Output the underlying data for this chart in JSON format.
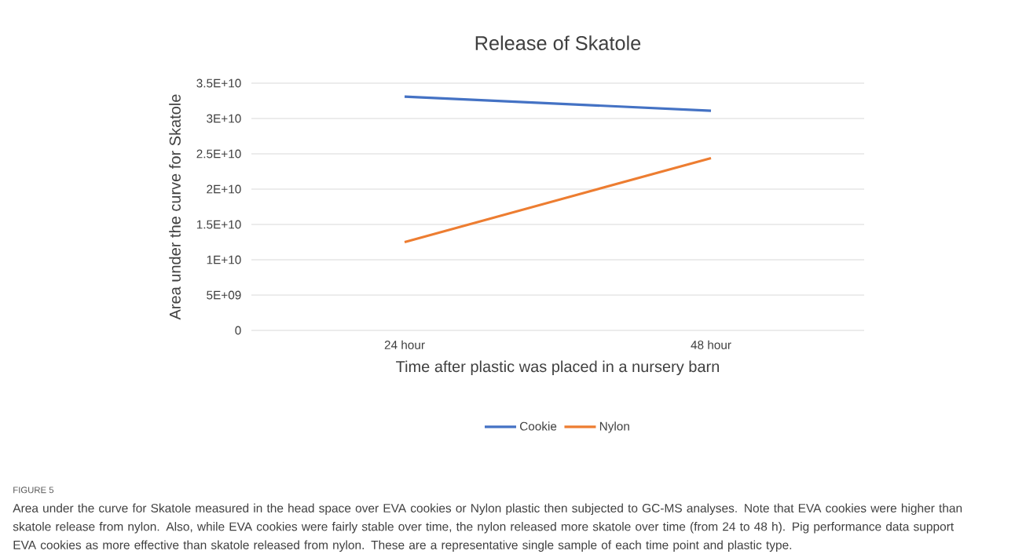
{
  "chart_data": {
    "type": "line",
    "title": "Release of Skatole",
    "xlabel": "Time after plastic was placed in a nursery barn",
    "ylabel": "Area under the curve for Skatole",
    "categories": [
      "24 hour",
      "48 hour"
    ],
    "series": [
      {
        "name": "Cookie",
        "color": "#4472c4",
        "values": [
          33100000000,
          31100000000
        ]
      },
      {
        "name": "Nylon",
        "color": "#ed7d31",
        "values": [
          12500000000,
          24400000000
        ]
      }
    ],
    "ylim": [
      0,
      35000000000
    ],
    "yticks": [
      0,
      {
        "value": 5000000000,
        "label": "5E+09"
      },
      {
        "value": 10000000000,
        "label": "1E+10"
      },
      {
        "value": 15000000000,
        "label": "1.5E+10"
      },
      {
        "value": 20000000000,
        "label": "2E+10"
      },
      {
        "value": 25000000000,
        "label": "2.5E+10"
      },
      {
        "value": 30000000000,
        "label": "3E+10"
      },
      {
        "value": 35000000000,
        "label": "3.5E+10"
      }
    ],
    "grid": "y",
    "legend": "bottom",
    "marker": "none",
    "line_style": "solid",
    "annotations": [
      "FIGURE 5",
      "Area under the curve for Skatole measured in the head space over EVA cookies or Nylon plastic then subjected to GC-MS analyses. Note that EVA cookies were higher than skatole release from nylon. Also, while EVA cookies were fairly stable over time, the nylon released more skatole over time (from 24 to 48 h). Pig performance data support EVA cookies as more effective than skatole released from nylon. These are a representative single sample of each time point and plastic type."
    ]
  }
}
